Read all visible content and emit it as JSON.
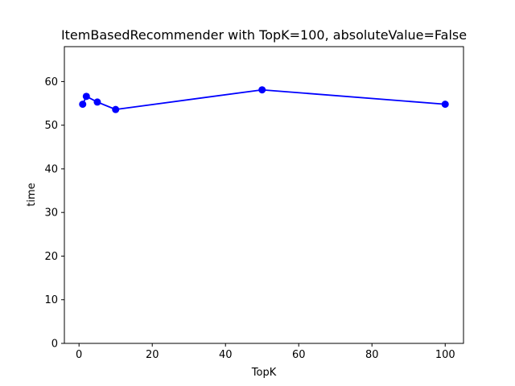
{
  "chart_data": {
    "type": "line",
    "title": "ItemBasedRecommender with TopK=100, absoluteValue=False",
    "xlabel": "TopK",
    "ylabel": "time",
    "x": [
      1,
      2,
      5,
      10,
      50,
      100
    ],
    "series": [
      {
        "values": [
          54.8,
          56.6,
          55.3,
          53.6,
          58.1,
          54.8
        ],
        "color": "#0000ff",
        "marker": "circle"
      }
    ],
    "xlim": [
      -4.0,
      105.0
    ],
    "ylim": [
      0,
      68
    ],
    "xticks": [
      0,
      20,
      40,
      60,
      80,
      100
    ],
    "yticks": [
      0,
      10,
      20,
      30,
      40,
      50,
      60
    ],
    "grid": false,
    "legend": "none"
  }
}
